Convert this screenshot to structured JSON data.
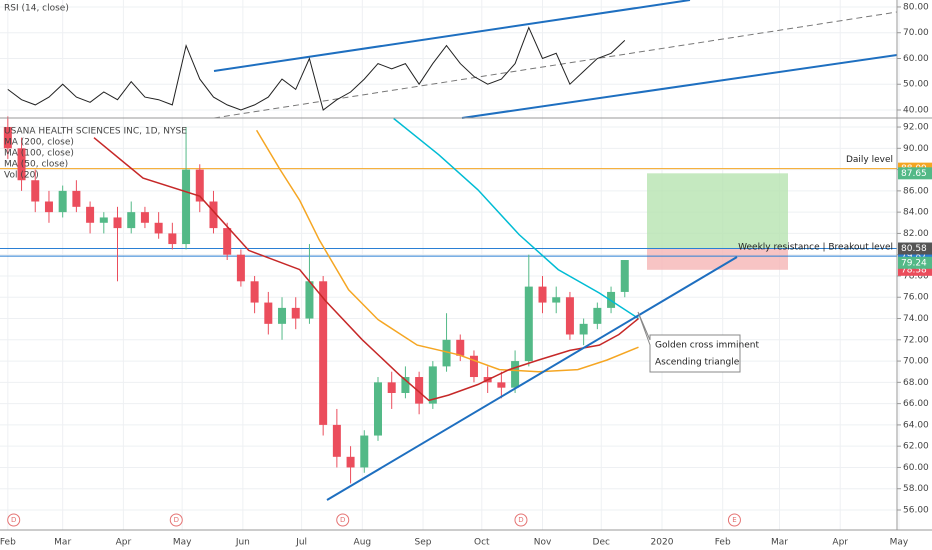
{
  "chart_data": [
    {
      "type": "candlestick",
      "title": "USANA HEALTH SCIENCES INC, 1D, NYSE",
      "volume_title": "Vol (20)",
      "x": [
        31,
        38,
        45,
        52,
        59,
        66,
        73,
        80,
        87,
        94,
        101,
        108,
        115,
        122,
        129,
        136,
        143,
        150,
        157,
        164,
        171,
        178,
        185,
        192,
        199,
        206,
        213,
        220,
        227,
        234,
        241,
        248,
        255,
        262,
        269,
        276,
        283,
        290,
        297,
        304,
        311,
        318,
        325,
        332,
        339,
        346
      ],
      "open": [
        92,
        90,
        87,
        85,
        84,
        86,
        84.5,
        83,
        83.5,
        82.5,
        84,
        83,
        82,
        81,
        88,
        85,
        82.5,
        80,
        77.5,
        75.5,
        73.5,
        75,
        74,
        77.5,
        64,
        61,
        60,
        63,
        68,
        67,
        68.5,
        66,
        69.5,
        72,
        70.5,
        68.5,
        68,
        67.5,
        70,
        77,
        75.5,
        76,
        72.5,
        73.5,
        75,
        76.5
      ],
      "high": [
        93,
        91,
        88,
        86,
        86.5,
        87,
        85,
        84,
        84.5,
        85,
        84.5,
        84,
        83,
        92,
        88.5,
        86,
        83,
        80.5,
        78,
        76.5,
        76,
        76,
        81,
        78,
        65.5,
        62,
        63.5,
        68.5,
        69,
        69.5,
        69,
        70,
        74.5,
        72.5,
        71,
        69.5,
        69,
        71,
        80,
        78,
        77,
        76.5,
        74,
        75.5,
        77,
        79.5
      ],
      "low": [
        89,
        86,
        84,
        83,
        83.5,
        84,
        82,
        82,
        77.5,
        82,
        82.5,
        81.5,
        80.5,
        80.5,
        84,
        82,
        79.5,
        77,
        74.5,
        72.5,
        72,
        73,
        73.5,
        63,
        60,
        58.5,
        59.5,
        62.5,
        65.5,
        66.5,
        65,
        65.5,
        69,
        70,
        68,
        67,
        66.5,
        67,
        69.5,
        74.5,
        74.5,
        72,
        71.5,
        73,
        74.5,
        76
      ],
      "close": [
        90,
        87,
        85,
        84,
        86,
        84.5,
        83,
        83.5,
        82.5,
        84,
        83,
        82,
        81,
        88,
        85,
        82.5,
        80,
        77.5,
        75.5,
        73.5,
        75,
        74,
        77.5,
        64,
        61,
        60,
        63,
        68,
        67,
        68.5,
        66,
        69.5,
        72,
        70.5,
        68.5,
        68,
        67.5,
        70,
        77,
        75.5,
        76,
        72.5,
        73.5,
        75,
        76.5,
        79.5
      ],
      "up_color": "#53b987",
      "down_color": "#eb4d5c",
      "series": [
        {
          "name": "MA (200, close)",
          "color": "#00bcd4",
          "x": [
            228,
            251,
            271,
            292,
            312,
            333,
            353
          ],
          "values": [
            92.8,
            89.4,
            86.1,
            81.9,
            78.6,
            76.4,
            74
          ]
        },
        {
          "name": "MA (100, close)",
          "color": "#f5a623",
          "x": [
            158,
            170,
            180,
            190,
            205,
            220,
            240,
            261,
            282,
            302,
            322,
            337,
            353
          ],
          "values": [
            91.7,
            88,
            85.1,
            81.4,
            76.7,
            73.9,
            71.5,
            70.6,
            69.2,
            69,
            69.2,
            70.1,
            71.3
          ]
        },
        {
          "name": "MA (50, close)",
          "color": "#c62828",
          "x": [
            75,
            100,
            129,
            154,
            180,
            193,
            212,
            231,
            246,
            256,
            271,
            287,
            302,
            318,
            333,
            343,
            353
          ],
          "values": [
            91,
            87.2,
            85.5,
            80.4,
            78.6,
            75.7,
            72,
            68.7,
            66.3,
            66.8,
            67.8,
            69.2,
            70.1,
            71,
            71.5,
            72.5,
            74
          ]
        }
      ],
      "levels": [
        {
          "value": 88.09,
          "color": "#f5a623",
          "label": "Daily level"
        },
        {
          "value": 79.87,
          "color": "#2a7fd4",
          "label": "Weekly resistance | Breakout level"
        },
        {
          "value": 80.58,
          "color": "#2a7fd4"
        }
      ],
      "position": {
        "target": 87.65,
        "entry": 80.58,
        "stop": 78.58,
        "target_color": "#b7e4b0",
        "stop_color": "#f5b5b5"
      },
      "last_price": 79.24,
      "annotations": [
        "Golden cross imminent",
        "Ascending triangle"
      ],
      "events": [
        {
          "x": 34,
          "label": "D"
        },
        {
          "x": 117,
          "label": "D"
        },
        {
          "x": 202,
          "label": "D"
        },
        {
          "x": 293,
          "label": "D"
        },
        {
          "x": 402,
          "label": "E"
        }
      ],
      "xlim": [
        27,
        485
      ],
      "xticks": [
        {
          "value": 31,
          "label": "Feb"
        },
        {
          "value": 59,
          "label": "Mar"
        },
        {
          "value": 90,
          "label": "Apr"
        },
        {
          "value": 120,
          "label": "May"
        },
        {
          "value": 151,
          "label": "Jun"
        },
        {
          "value": 181,
          "label": "Jul"
        },
        {
          "value": 212,
          "label": "Aug"
        },
        {
          "value": 243,
          "label": "Sep"
        },
        {
          "value": 273,
          "label": "Oct"
        },
        {
          "value": 304,
          "label": "Nov"
        },
        {
          "value": 334,
          "label": "Dec"
        },
        {
          "value": 365,
          "label": "2020"
        },
        {
          "value": 396,
          "label": "Feb"
        },
        {
          "value": 425,
          "label": "Mar"
        },
        {
          "value": 456,
          "label": "Apr"
        },
        {
          "value": 486,
          "label": "May"
        }
      ],
      "ylim": [
        54.12,
        92.85
      ],
      "yticks": [
        {
          "value": 56,
          "label": "56.00"
        },
        {
          "value": 58,
          "label": "58.00"
        },
        {
          "value": 60,
          "label": "60.00"
        },
        {
          "value": 62,
          "label": "62.00"
        },
        {
          "value": 64,
          "label": "64.00"
        },
        {
          "value": 66,
          "label": "66.00"
        },
        {
          "value": 68,
          "label": "68.00"
        },
        {
          "value": 70,
          "label": "70.00"
        },
        {
          "value": 72,
          "label": "72.00"
        },
        {
          "value": 74,
          "label": "74.00"
        },
        {
          "value": 76,
          "label": "76.00"
        },
        {
          "value": 78,
          "label": "78.00"
        },
        {
          "value": 80,
          "label": "80.00"
        },
        {
          "value": 82,
          "label": "82.00"
        },
        {
          "value": 84,
          "label": "84.00"
        },
        {
          "value": 86,
          "label": "86.00"
        },
        {
          "value": 88,
          "label": "88.00"
        },
        {
          "value": 90,
          "label": "90.00"
        },
        {
          "value": 92,
          "label": "92.00"
        }
      ],
      "grid": true
    },
    {
      "type": "line",
      "title": "RSI (14, close)",
      "color": "#222222",
      "x": [
        31,
        38,
        45,
        52,
        59,
        66,
        73,
        80,
        87,
        94,
        101,
        108,
        115,
        122,
        129,
        136,
        143,
        150,
        157,
        164,
        171,
        178,
        185,
        192,
        199,
        206,
        213,
        220,
        227,
        234,
        241,
        248,
        255,
        262,
        269,
        276,
        283,
        290,
        297,
        304,
        311,
        318,
        325,
        332,
        339,
        346
      ],
      "values": [
        48,
        44,
        42,
        45,
        50,
        45,
        43,
        47,
        44,
        51,
        45,
        44,
        42,
        65,
        52,
        45,
        42,
        40,
        42,
        45,
        52,
        48,
        60,
        40,
        44,
        47,
        52,
        58,
        56,
        58,
        50,
        58,
        65,
        58,
        53,
        50,
        52,
        58,
        72,
        60,
        62,
        50,
        55,
        60,
        62,
        67
      ],
      "xlim": [
        27,
        485
      ],
      "ylim": [
        36.9,
        82.7
      ],
      "yticks": [
        {
          "value": 40,
          "label": "40.00"
        },
        {
          "value": 50,
          "label": "50.00"
        },
        {
          "value": 60,
          "label": "60.00"
        },
        {
          "value": 70,
          "label": "70.00"
        },
        {
          "value": 80,
          "label": "80.00"
        }
      ],
      "grid": true
    }
  ]
}
